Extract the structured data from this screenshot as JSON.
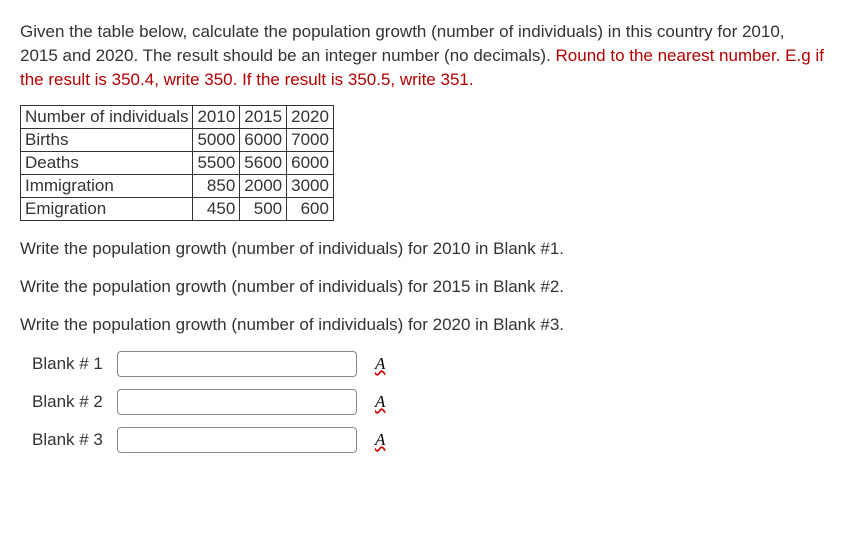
{
  "question": {
    "part1": "Given the table below, calculate the population growth (number of individuals) in this country for 2010, 2015 and 2020. The result should be an integer number (no decimals). ",
    "part2_red": "Round to the nearest number. E.g if the result is 350.4, write 350. If the result is 350.5, write 351."
  },
  "table": {
    "header": [
      "Number of individuals",
      "2010",
      "2015",
      "2020"
    ],
    "rows": [
      {
        "label": "Births",
        "vals": [
          "5000",
          "6000",
          "7000"
        ]
      },
      {
        "label": "Deaths",
        "vals": [
          "5500",
          "5600",
          "6000"
        ]
      },
      {
        "label": "Immigration",
        "vals": [
          "850",
          "2000",
          "3000"
        ]
      },
      {
        "label": "Emigration",
        "vals": [
          "450",
          "500",
          "600"
        ]
      }
    ],
    "col_widths": [
      "auto",
      "auto",
      "auto",
      "auto"
    ]
  },
  "instructions": [
    "Write the population growth (number of individuals) for 2010 in Blank #1.",
    "Write the population growth (number of individuals) for 2015 in Blank #2.",
    "Write the population growth (number of individuals) for 2020 in Blank #3."
  ],
  "blanks": [
    {
      "label": "Blank # 1",
      "value": ""
    },
    {
      "label": "Blank # 2",
      "value": ""
    },
    {
      "label": "Blank # 3",
      "value": ""
    }
  ],
  "spell_icon_glyph": "A"
}
